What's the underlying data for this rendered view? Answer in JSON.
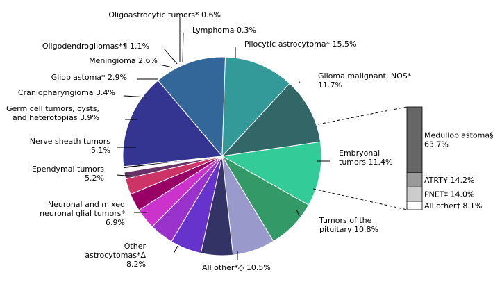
{
  "chart_data": [
    {
      "type": "pie",
      "slices": [
        {
          "label": [
            "Pilocytic astrocytoma* 15.5%"
          ],
          "value": 15.5,
          "color": "#343491"
        },
        {
          "label": [
            "Glioma malignant, NOS*",
            "11.7%"
          ],
          "value": 11.7,
          "color": "#336699"
        },
        {
          "label": [
            "Embryonal",
            "tumors 11.4%"
          ],
          "value": 11.4,
          "color": "#339999"
        },
        {
          "label": [
            "Tumors of the",
            "pituitary 10.8%"
          ],
          "value": 10.8,
          "color": "#336666"
        },
        {
          "label": [
            "All other*◇ 10.5%"
          ],
          "value": 10.5,
          "color": "#33cc99"
        },
        {
          "label": [
            "Other",
            "astrocytomas*Δ",
            "8.2%"
          ],
          "value": 8.2,
          "color": "#339966"
        },
        {
          "label": [
            "Neuronal and mixed",
            "neuronal glial tumors*",
            "6.9%"
          ],
          "value": 6.9,
          "color": "#9999cc"
        },
        {
          "label": [
            "Ependymal tumors",
            "5.2%"
          ],
          "value": 5.2,
          "color": "#333366"
        },
        {
          "label": [
            "Nerve sheath tumors",
            "5.1%"
          ],
          "value": 5.1,
          "color": "#6633cc"
        },
        {
          "label": [
            "Germ cell tumors, cysts,",
            "and heterotopias 3.9%"
          ],
          "value": 3.9,
          "color": "#9933cc"
        },
        {
          "label": [
            "Craniopharyngioma 3.4%"
          ],
          "value": 3.4,
          "color": "#cc33cc"
        },
        {
          "label": [
            "Glioblastoma* 2.9%"
          ],
          "value": 2.9,
          "color": "#990066"
        },
        {
          "label": [
            "Meningioma 2.6%"
          ],
          "value": 2.6,
          "color": "#cc3366"
        },
        {
          "label": [
            "Oligodendrogliomas*¶ 1.1%"
          ],
          "value": 1.1,
          "color": "#663366"
        },
        {
          "label": [
            "Oligoastrocytic tumors* 0.6%"
          ],
          "value": 0.6,
          "color": "#ffffff"
        },
        {
          "label": [
            "Lymphoma 0.3%"
          ],
          "value": 0.3,
          "color": "#000000"
        }
      ],
      "legend": "none"
    },
    {
      "type": "bar",
      "stacked": true,
      "breakdown_of": "Embryonal tumors 11.4%",
      "segments": [
        {
          "label": [
            "Medulloblastoma§",
            "63.7%"
          ],
          "value": 63.7,
          "color": "#666666"
        },
        {
          "label": [
            "ATRT¥ 14.2%"
          ],
          "value": 14.2,
          "color": "#999999"
        },
        {
          "label": [
            "PNET‡ 14.0%"
          ],
          "value": 14.0,
          "color": "#cccccc"
        },
        {
          "label": [
            "All other† 8.1%"
          ],
          "value": 8.1,
          "color": "#ffffff"
        }
      ]
    }
  ]
}
